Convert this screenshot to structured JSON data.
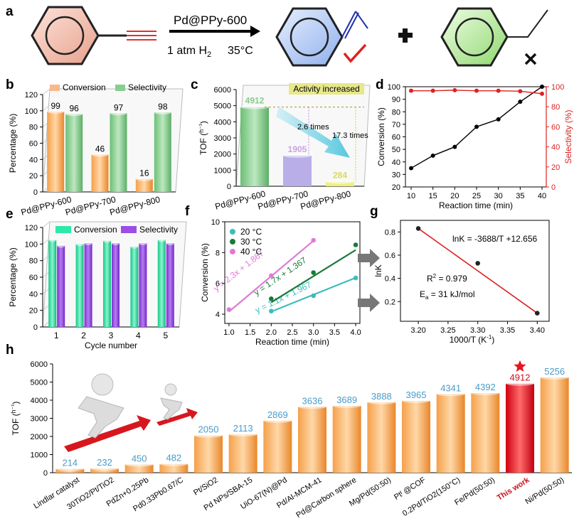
{
  "panel_labels": [
    "a",
    "b",
    "c",
    "d",
    "e",
    "f",
    "g",
    "h"
  ],
  "scheme": {
    "catalyst": "Pd@PPy-600",
    "conditions": "1 atm H",
    "conditions_sub": "2",
    "temperature": "35°C",
    "colors": {
      "reactant": "#f4c9bd",
      "product": "#b9cdef",
      "overproduct": "#bfeaa8",
      "triple_bond": "#e03030",
      "vinyl": "#2233aa",
      "check": "#e02020"
    }
  },
  "chart_data": [
    {
      "panel": "b",
      "type": "bar",
      "categories": [
        "Pd@PPy-600",
        "Pd@PPy-700",
        "Pd@PPy-800"
      ],
      "series": [
        {
          "name": "Conversion",
          "values": [
            99,
            46,
            16
          ],
          "color": "#f7b98a"
        },
        {
          "name": "Selectivity",
          "values": [
            96,
            97,
            98
          ],
          "color": "#86cf8e"
        }
      ],
      "ylabel": "Percentage (%)",
      "ylim": [
        0,
        120
      ],
      "yticks": [
        0,
        20,
        40,
        60,
        80,
        100,
        120
      ],
      "legend": "top"
    },
    {
      "panel": "c",
      "type": "bar",
      "categories": [
        "Pd@PPy-600",
        "Pd@PPy-700",
        "Pd@PPy-800"
      ],
      "values": [
        4912,
        1905,
        284
      ],
      "colors": [
        "#84cc84",
        "#b0a4e4",
        "#eaea80"
      ],
      "label_colors": [
        "#88cc88",
        "#c9a4e4",
        "#d8d860"
      ],
      "ylabel": "TOF (",
      "ylabel_sup": "h⁻¹",
      "ylim": [
        0,
        6000
      ],
      "yticks": [
        0,
        1000,
        2000,
        3000,
        4000,
        5000,
        6000
      ],
      "annotations": {
        "banner": "Activity increased",
        "ratio1": "2.6 times",
        "ratio2": "17.3 times"
      }
    },
    {
      "panel": "d",
      "type": "line",
      "x": [
        10,
        15,
        20,
        25,
        30,
        35,
        40
      ],
      "series": [
        {
          "name": "Conversion",
          "values": [
            35,
            45,
            52,
            68,
            74,
            88,
            100
          ],
          "color": "#000000",
          "axis": "left"
        },
        {
          "name": "Selectivity",
          "values": [
            96,
            96,
            96.5,
            96,
            96,
            95.5,
            93
          ],
          "color": "#dd2222",
          "axis": "right"
        }
      ],
      "xlabel": "Reaction time (min)",
      "ylabel": "Conversion (%)",
      "ylabel_right": "Selectivity (%)",
      "xlim": [
        10,
        40
      ],
      "ylim": [
        20,
        100
      ],
      "ylim_right": [
        0,
        100
      ],
      "xticks": [
        10,
        15,
        20,
        25,
        30,
        35,
        40
      ],
      "yticks": [
        20,
        30,
        40,
        50,
        60,
        70,
        80,
        90,
        100
      ],
      "yticks_right": [
        0,
        20,
        40,
        60,
        80,
        100
      ]
    },
    {
      "panel": "e",
      "type": "bar",
      "categories": [
        "1",
        "2",
        "3",
        "4",
        "5"
      ],
      "series": [
        {
          "name": "Conversion",
          "values": [
            105,
            100,
            104,
            97,
            105
          ],
          "color": "#2ee8a8"
        },
        {
          "name": "Selectivity",
          "values": [
            98,
            101,
            101,
            101,
            101
          ],
          "color": "#9b4fe6"
        }
      ],
      "xlabel": "Cycle number",
      "ylabel": "Percentage (%)",
      "ylim": [
        0,
        120
      ],
      "yticks": [
        0,
        20,
        40,
        60,
        80,
        100,
        120
      ],
      "legend": "top"
    },
    {
      "panel": "f",
      "type": "scatter",
      "series": [
        {
          "name": "20 °C",
          "x": [
            2,
            3,
            4
          ],
          "values": [
            4.2,
            5.2,
            6.35
          ],
          "color": "#3cbcbc",
          "fit": "y = 1.1x + 1.967",
          "fit_line": [
            1.967,
            1.1
          ]
        },
        {
          "name": "30 °C",
          "x": [
            2,
            3,
            4
          ],
          "values": [
            5,
            6.7,
            8.5
          ],
          "color": "#1a7a3a",
          "fit": "y = 1.7x + 1.367",
          "fit_line": [
            1.367,
            1.7
          ]
        },
        {
          "name": "40 °C",
          "x": [
            1,
            2,
            3
          ],
          "values": [
            4.3,
            6.5,
            8.8
          ],
          "color": "#e07ad8",
          "fit": "y = 2.3x + 1.867",
          "fit_line": [
            1.867,
            2.3
          ]
        }
      ],
      "xlabel": "Reaction time (min)",
      "ylabel": "Conversion (%)",
      "xlim": [
        0.9,
        4.1
      ],
      "ylim": [
        3.4,
        10
      ],
      "xticks": [
        1.0,
        1.5,
        2.0,
        2.5,
        3.0,
        3.5,
        4.0
      ],
      "yticks": [
        4,
        6,
        8,
        10
      ]
    },
    {
      "panel": "g",
      "type": "scatter",
      "series": [
        {
          "x": [
            3.2,
            3.3,
            3.4
          ],
          "values": [
            0.83,
            0.53,
            0.1
          ],
          "color": "#222222",
          "fit_color": "#dd2222"
        }
      ],
      "equation": "lnK = -3688/T +12.656",
      "r2_prefix": "R",
      "r2_sup": "2",
      "r2_value": " = 0.979",
      "ea_prefix": "E",
      "ea_sub": "a",
      "ea_value": " = 31 kJ/mol",
      "xlabel": "1000/T (K",
      "xlabel_sup": "-1",
      "xlabel_end": ")",
      "ylabel": "lnK",
      "xlim": [
        3.17,
        3.42
      ],
      "ylim": [
        0.03,
        0.9
      ],
      "xticks": [
        3.2,
        3.25,
        3.3,
        3.35,
        3.4
      ],
      "yticks": [
        0.2,
        0.4,
        0.6,
        0.8
      ]
    },
    {
      "panel": "h",
      "type": "bar",
      "categories": [
        "Lindlar catalyst",
        "30TiO2/Pt/TiO2",
        "PdZn+0.25Pb",
        "Pd0.33Pb0.67/C",
        "Pt/SiO2",
        "Pd NPs/SBA-15",
        "UiO-67(N)@Pd",
        "Pd/Al-MCM-41",
        "Pd@Carbon sphere",
        "Mg/Pd(50:50)",
        "Ptᴵ @COF",
        "0.2Pd/TiO2(150°C)",
        "Fe/Pd(50:50)",
        "This work",
        "Ni/Pd(50:50)"
      ],
      "values": [
        214,
        232,
        450,
        482,
        2050,
        2113,
        2869,
        3636,
        3689,
        3888,
        3965,
        4341,
        4392,
        4912,
        5256
      ],
      "highlight_index": 13,
      "bar_color": "#f39a3c",
      "highlight_color": "#e8141e",
      "value_label_color": "#4a9bc8",
      "highlight_label_color": "#d0101a",
      "ylabel": "TOF (",
      "ylabel_sup": "h⁻¹",
      "ylim": [
        0,
        6000
      ],
      "yticks": [
        0,
        1000,
        2000,
        3000,
        4000,
        5000,
        6000
      ]
    }
  ]
}
